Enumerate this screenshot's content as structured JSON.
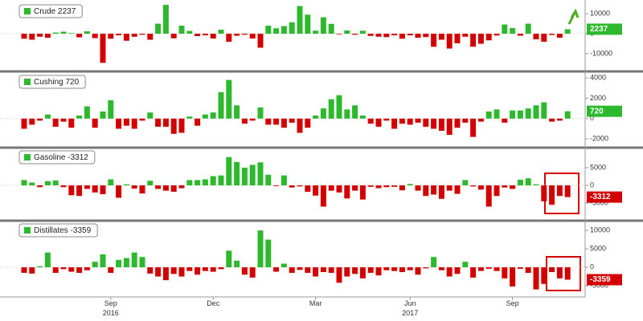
{
  "chart_data": [
    {
      "type": "bar",
      "legend": "Crude 2237",
      "ylim": [
        -17600,
        15200
      ],
      "yticks": [
        -10000,
        0,
        10000
      ],
      "positive_color": "#2db82d",
      "negative_color": "#d40000",
      "values": [
        -2500,
        -3000,
        -1500,
        -2000,
        600,
        1000,
        300,
        -1800,
        1200,
        -2200,
        -14500,
        -2500,
        -800,
        -3500,
        -1500,
        -500,
        -3000,
        5000,
        14400,
        -2300,
        4000,
        1400,
        -1200,
        -800,
        -2400,
        2000,
        -4000,
        -1000,
        -500,
        -2400,
        -7000,
        4000,
        2700,
        3800,
        5700,
        13800,
        9500,
        1500,
        8200,
        4900,
        -300,
        1600,
        -500,
        1500,
        -1100,
        -1500,
        -1700,
        -800,
        -2500,
        -800,
        -2000,
        -1700,
        -6500,
        -3000,
        -7400,
        -4800,
        -1500,
        -6500,
        -5000,
        -3300,
        -900,
        4600,
        2800,
        -1000,
        5000,
        -2800,
        -4000,
        -600,
        -2000,
        2237
      ]
    },
    {
      "type": "bar",
      "legend": "Cushing 720",
      "ylim": [
        -2700,
        4400
      ],
      "yticks": [
        -2000,
        0,
        2000,
        4000
      ],
      "positive_color": "#2db82d",
      "negative_color": "#d40000",
      "values": [
        -1000,
        -600,
        -200,
        400,
        -800,
        -300,
        -900,
        300,
        1200,
        -900,
        700,
        1800,
        -1000,
        -700,
        -1000,
        -200,
        600,
        -800,
        -800,
        -1500,
        -1400,
        200,
        -700,
        400,
        600,
        2600,
        3800,
        1300,
        -500,
        -200,
        1100,
        -600,
        -600,
        -900,
        -400,
        -1400,
        -900,
        300,
        1000,
        1900,
        2300,
        900,
        1300,
        300,
        -500,
        -800,
        -200,
        -1000,
        -500,
        -600,
        -400,
        -800,
        -1000,
        -1200,
        -1600,
        -900,
        -400,
        -1800,
        -300,
        700,
        900,
        -400,
        800,
        800,
        1000,
        1300,
        1600,
        -300,
        -200,
        720
      ]
    },
    {
      "type": "bar",
      "legend": "Gasoline -3312",
      "ylim": [
        -9300,
        10200
      ],
      "yticks": [
        -5000,
        0,
        5000
      ],
      "positive_color": "#2db82d",
      "negative_color": "#d40000",
      "values": [
        1500,
        800,
        -500,
        1200,
        1400,
        -500,
        -2800,
        -3000,
        -1000,
        -2000,
        -2500,
        1700,
        -3500,
        300,
        -900,
        -2300,
        1300,
        -1000,
        -1500,
        -1800,
        -800,
        1500,
        1500,
        1700,
        2600,
        2800,
        8000,
        6600,
        5000,
        5800,
        6500,
        3000,
        -200,
        2800,
        -600,
        -300,
        -1800,
        -2900,
        -6000,
        -1500,
        -2000,
        -3700,
        -1500,
        -4000,
        -400,
        -800,
        -500,
        -400,
        -1400,
        400,
        -1500,
        -3000,
        -2600,
        -3800,
        -1500,
        -2400,
        1500,
        -300,
        -1200,
        -6000,
        -3000,
        -600,
        -1000,
        1600,
        2000,
        300,
        -4500,
        -5500,
        -3000,
        -3312
      ]
    },
    {
      "type": "bar",
      "legend": "Distillates -3359",
      "ylim": [
        -7600,
        12200
      ],
      "yticks": [
        -5000,
        0,
        5000,
        10000
      ],
      "positive_color": "#2db82d",
      "negative_color": "#d40000",
      "categories": [
        null,
        null,
        null,
        null,
        null,
        null,
        null,
        null,
        null,
        null,
        null,
        "Sep 2016",
        null,
        null,
        null,
        null,
        null,
        null,
        null,
        null,
        null,
        null,
        null,
        null,
        "Dec",
        null,
        null,
        null,
        null,
        null,
        null,
        null,
        null,
        null,
        null,
        null,
        null,
        "Mar",
        null,
        null,
        null,
        null,
        null,
        null,
        null,
        null,
        null,
        null,
        null,
        "Jun 2017",
        null,
        null,
        null,
        null,
        null,
        null,
        null,
        null,
        null,
        null,
        null,
        null,
        "Sep",
        null,
        null,
        null,
        null,
        null,
        null,
        null
      ],
      "values": [
        -1500,
        -1700,
        300,
        4000,
        -1500,
        -500,
        -1200,
        -1500,
        -800,
        1500,
        3500,
        -1500,
        2000,
        2500,
        4000,
        2800,
        -1700,
        -2500,
        -3500,
        -1800,
        -2500,
        -1000,
        -2000,
        -1000,
        -1200,
        -500,
        4500,
        1800,
        -2000,
        -2800,
        10000,
        7500,
        -1200,
        1000,
        -1500,
        -700,
        -1500,
        -2500,
        -1300,
        -1500,
        -4200,
        -2500,
        -1800,
        -3000,
        -1500,
        -2200,
        -800,
        -1000,
        -1300,
        -800,
        -2000,
        -300,
        2800,
        -800,
        -2500,
        -1800,
        1500,
        -2800,
        -1000,
        -400,
        -1000,
        -3000,
        -5200,
        -400,
        -1500,
        -6000,
        -4500,
        -1300,
        -3000,
        -3359
      ]
    }
  ]
}
